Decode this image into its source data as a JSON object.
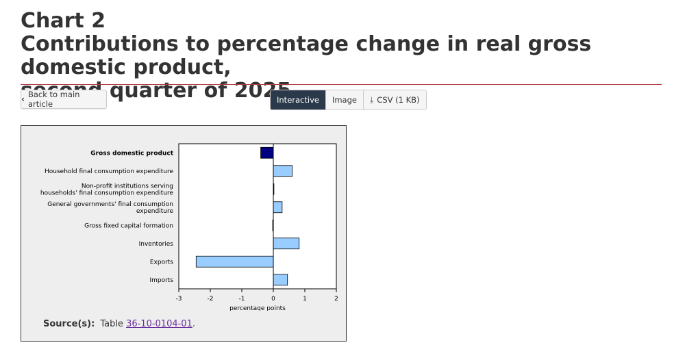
{
  "title": {
    "line1": "Chart 2",
    "line2": "Contributions to percentage change in real gross domestic product,",
    "line3": "second quarter of 2025"
  },
  "buttons": {
    "back_label": "Back to main article",
    "interactive_label": "Interactive",
    "image_label": "Image",
    "csv_label": "CSV (1 KB)"
  },
  "source": {
    "label": "Source(s):",
    "prefix": "Table ",
    "link_text": "36-10-0104-01",
    "suffix": "."
  },
  "colors": {
    "highlight_bar": "#000080",
    "bar": "#99ccff",
    "bar_stroke": "#000000",
    "title_rule": "#af3c43",
    "link": "#6c2f9e"
  },
  "chart_data": {
    "type": "bar",
    "orientation": "horizontal",
    "categories": [
      {
        "lines": [
          "Gross domestic product"
        ],
        "bold": true
      },
      {
        "lines": [
          "Household final consumption expenditure"
        ]
      },
      {
        "lines": [
          "Non-profit institutions serving",
          "households' final consumption expenditure"
        ]
      },
      {
        "lines": [
          "General governments' final consumption",
          "expenditure"
        ]
      },
      {
        "lines": [
          "Gross fixed capital formation"
        ]
      },
      {
        "lines": [
          "Inventories"
        ]
      },
      {
        "lines": [
          "Exports"
        ]
      },
      {
        "lines": [
          "Imports"
        ]
      }
    ],
    "values": [
      -0.4,
      0.6,
      0.02,
      0.28,
      -0.02,
      0.82,
      -2.45,
      0.45
    ],
    "xlabel": "percentage points",
    "xlim": [
      -3,
      2
    ],
    "xticks": [
      -3,
      -2,
      -1,
      0,
      1,
      2
    ],
    "grid": false,
    "legend": "none"
  }
}
